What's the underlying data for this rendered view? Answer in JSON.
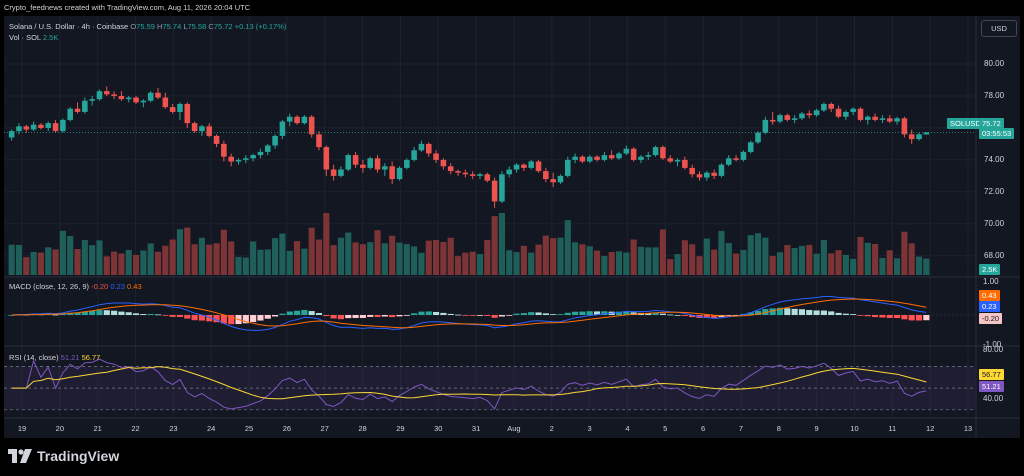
{
  "watermark": "Crypto_feednews created with TradingView.com, Aug 11, 2026 20:04 UTC",
  "legend": {
    "symbol": "Solana / U.S. Dollar · 4h · Coinbase",
    "o_label": "O",
    "o_value": "75.59",
    "h_label": "H",
    "h_value": "75.74",
    "l_label": "L",
    "l_value": "75.58",
    "c_label": "C",
    "c_value": "75.72",
    "change": "+0.13 (+0.17%)",
    "vol_label": "Vol · SOL",
    "vol_value": "2.5K"
  },
  "currency_button": "USD",
  "price_axis": [
    "80.00",
    "78.00",
    "76.00",
    "74.00",
    "72.00",
    "70.00",
    "68.00"
  ],
  "price_tag": {
    "symbol": "SOLUSD",
    "price": "75.72",
    "countdown": "03:55:53"
  },
  "volume_tag": "2.5K",
  "macd": {
    "label": "MACD (close, 12, 26, 9)",
    "hist_value": "-0.20",
    "macd_value": "0.23",
    "signal_value": "0.43",
    "axis": [
      "1.00",
      "-1.00"
    ],
    "tag_signal": "0.43",
    "tag_macd": "0.23",
    "tag_hist": "-0.20"
  },
  "rsi": {
    "label": "RSI (14, close)",
    "rsi_value": "51.21",
    "ma_value": "56.77",
    "axis": [
      "80.00",
      "40.00"
    ],
    "tag_ma": "56.77",
    "tag_rsi": "51.21"
  },
  "time_axis": [
    "19",
    "20",
    "21",
    "22",
    "23",
    "24",
    "25",
    "26",
    "27",
    "28",
    "29",
    "30",
    "31",
    "Aug",
    "2",
    "3",
    "4",
    "5",
    "6",
    "7",
    "8",
    "9",
    "10",
    "11",
    "12",
    "13"
  ],
  "footer_brand": "TradingView",
  "colors": {
    "up": "#26a69a",
    "down": "#ef5350",
    "macd_line": "#2962ff",
    "signal_line": "#ff6d00",
    "rsi_line": "#7e57c2",
    "rsi_ma": "#fdd835",
    "bg": "#131722"
  },
  "chart_data": {
    "type": "candlestick",
    "interval": "4h",
    "candles_ohlc": [
      [
        75.4,
        75.9,
        75.2,
        75.8
      ],
      [
        75.8,
        76.3,
        75.6,
        76.1
      ],
      [
        76.1,
        76.2,
        75.7,
        75.9
      ],
      [
        75.9,
        76.4,
        75.8,
        76.2
      ],
      [
        76.2,
        76.3,
        75.9,
        76.0
      ],
      [
        76.0,
        76.4,
        75.8,
        76.3
      ],
      [
        76.3,
        76.5,
        75.7,
        75.8
      ],
      [
        75.8,
        76.6,
        75.7,
        76.5
      ],
      [
        76.5,
        77.3,
        76.4,
        77.2
      ],
      [
        77.2,
        77.6,
        76.9,
        77.0
      ],
      [
        77.0,
        77.9,
        76.9,
        77.7
      ],
      [
        77.7,
        78.0,
        77.4,
        77.8
      ],
      [
        77.8,
        78.4,
        77.7,
        78.3
      ],
      [
        78.3,
        78.6,
        78.0,
        78.1
      ],
      [
        78.1,
        78.3,
        77.8,
        78.0
      ],
      [
        78.0,
        78.3,
        77.7,
        77.8
      ],
      [
        77.8,
        78.0,
        77.6,
        77.9
      ],
      [
        77.9,
        78.0,
        77.5,
        77.6
      ],
      [
        77.6,
        77.8,
        77.3,
        77.7
      ],
      [
        77.7,
        78.3,
        77.6,
        78.2
      ],
      [
        78.2,
        78.5,
        77.8,
        77.9
      ],
      [
        77.9,
        78.2,
        77.2,
        77.3
      ],
      [
        77.3,
        77.5,
        76.9,
        77.0
      ],
      [
        77.0,
        77.6,
        76.5,
        77.5
      ],
      [
        77.5,
        77.6,
        76.0,
        76.3
      ],
      [
        76.3,
        76.4,
        75.7,
        75.8
      ],
      [
        75.8,
        76.2,
        75.5,
        76.1
      ],
      [
        76.1,
        76.3,
        75.4,
        75.5
      ],
      [
        75.5,
        75.6,
        74.8,
        75.0
      ],
      [
        75.0,
        75.2,
        73.9,
        74.2
      ],
      [
        74.2,
        74.4,
        73.6,
        73.9
      ],
      [
        73.9,
        74.1,
        73.7,
        74.0
      ],
      [
        74.0,
        74.3,
        73.8,
        74.1
      ],
      [
        74.1,
        74.4,
        73.9,
        74.3
      ],
      [
        74.3,
        74.7,
        74.1,
        74.5
      ],
      [
        74.5,
        75.0,
        74.3,
        74.9
      ],
      [
        74.9,
        75.6,
        74.7,
        75.5
      ],
      [
        75.5,
        76.5,
        75.3,
        76.4
      ],
      [
        76.4,
        76.9,
        76.1,
        76.7
      ],
      [
        76.7,
        76.8,
        76.2,
        76.3
      ],
      [
        76.3,
        76.8,
        76.2,
        76.7
      ],
      [
        76.7,
        76.8,
        75.4,
        75.6
      ],
      [
        75.6,
        75.8,
        74.6,
        74.8
      ],
      [
        74.8,
        74.9,
        73.0,
        73.4
      ],
      [
        73.4,
        73.7,
        72.7,
        73.0
      ],
      [
        73.0,
        73.6,
        72.9,
        73.4
      ],
      [
        73.4,
        74.4,
        73.3,
        74.3
      ],
      [
        74.3,
        74.5,
        73.5,
        73.7
      ],
      [
        73.7,
        74.0,
        73.2,
        73.5
      ],
      [
        73.5,
        74.2,
        73.4,
        74.1
      ],
      [
        74.1,
        74.3,
        73.2,
        73.4
      ],
      [
        73.4,
        73.8,
        73.0,
        73.6
      ],
      [
        73.6,
        73.9,
        72.5,
        72.8
      ],
      [
        72.8,
        73.6,
        72.7,
        73.5
      ],
      [
        73.5,
        74.1,
        73.4,
        74.0
      ],
      [
        74.0,
        74.8,
        73.9,
        74.6
      ],
      [
        74.6,
        75.2,
        74.5,
        75.0
      ],
      [
        75.0,
        75.1,
        74.2,
        74.4
      ],
      [
        74.4,
        74.6,
        73.8,
        74.0
      ],
      [
        74.0,
        74.1,
        73.4,
        73.6
      ],
      [
        73.6,
        73.8,
        73.1,
        73.3
      ],
      [
        73.3,
        73.4,
        73.0,
        73.2
      ],
      [
        73.2,
        73.4,
        72.9,
        73.1
      ],
      [
        73.1,
        73.3,
        72.8,
        73.0
      ],
      [
        73.0,
        73.2,
        72.8,
        73.1
      ],
      [
        73.1,
        73.2,
        72.6,
        72.7
      ],
      [
        72.7,
        72.9,
        71.0,
        71.4
      ],
      [
        71.4,
        73.3,
        71.3,
        73.1
      ],
      [
        73.1,
        73.6,
        72.9,
        73.4
      ],
      [
        73.4,
        73.8,
        73.2,
        73.7
      ],
      [
        73.7,
        73.8,
        73.3,
        73.5
      ],
      [
        73.5,
        74.0,
        73.4,
        73.9
      ],
      [
        73.9,
        74.0,
        73.2,
        73.3
      ],
      [
        73.3,
        73.5,
        72.6,
        72.8
      ],
      [
        72.8,
        73.2,
        72.3,
        72.6
      ],
      [
        72.6,
        73.1,
        72.5,
        73.0
      ],
      [
        73.0,
        74.2,
        72.9,
        74.0
      ],
      [
        74.0,
        74.4,
        73.8,
        74.2
      ],
      [
        74.2,
        74.3,
        73.8,
        73.9
      ],
      [
        73.9,
        74.3,
        73.8,
        74.2
      ],
      [
        74.2,
        74.3,
        73.9,
        74.0
      ],
      [
        74.0,
        74.5,
        73.9,
        74.3
      ],
      [
        74.3,
        74.6,
        74.0,
        74.1
      ],
      [
        74.1,
        74.5,
        74.0,
        74.4
      ],
      [
        74.4,
        74.9,
        74.3,
        74.7
      ],
      [
        74.7,
        74.8,
        73.9,
        74.0
      ],
      [
        74.0,
        74.3,
        73.8,
        74.2
      ],
      [
        74.2,
        74.5,
        74.0,
        74.3
      ],
      [
        74.3,
        74.9,
        74.2,
        74.8
      ],
      [
        74.8,
        74.9,
        74.0,
        74.1
      ],
      [
        74.1,
        74.3,
        73.8,
        73.9
      ],
      [
        73.9,
        74.1,
        73.6,
        74.0
      ],
      [
        74.0,
        74.2,
        73.4,
        73.5
      ],
      [
        73.5,
        73.7,
        72.9,
        73.1
      ],
      [
        73.1,
        73.3,
        72.7,
        72.9
      ],
      [
        72.9,
        73.3,
        72.7,
        73.2
      ],
      [
        73.2,
        73.4,
        72.8,
        73.0
      ],
      [
        73.0,
        73.8,
        72.9,
        73.7
      ],
      [
        73.7,
        74.3,
        73.6,
        74.1
      ],
      [
        74.1,
        74.3,
        73.9,
        74.0
      ],
      [
        74.0,
        74.6,
        73.9,
        74.5
      ],
      [
        74.5,
        75.2,
        74.4,
        75.1
      ],
      [
        75.1,
        75.8,
        75.0,
        75.7
      ],
      [
        75.7,
        76.7,
        75.6,
        76.5
      ],
      [
        76.5,
        77.0,
        76.2,
        76.4
      ],
      [
        76.4,
        76.9,
        76.3,
        76.8
      ],
      [
        76.8,
        76.9,
        76.4,
        76.5
      ],
      [
        76.5,
        76.8,
        76.3,
        76.6
      ],
      [
        76.6,
        77.0,
        76.5,
        76.9
      ],
      [
        76.9,
        77.1,
        76.6,
        76.8
      ],
      [
        76.8,
        77.2,
        76.7,
        77.1
      ],
      [
        77.1,
        77.6,
        77.0,
        77.5
      ],
      [
        77.5,
        77.6,
        77.0,
        77.2
      ],
      [
        77.2,
        77.4,
        76.6,
        76.7
      ],
      [
        76.7,
        77.1,
        76.5,
        77.0
      ],
      [
        77.0,
        77.3,
        76.8,
        77.2
      ],
      [
        77.2,
        77.3,
        76.4,
        76.5
      ],
      [
        76.5,
        76.8,
        76.2,
        76.7
      ],
      [
        76.7,
        76.9,
        76.4,
        76.5
      ],
      [
        76.5,
        76.8,
        76.3,
        76.6
      ],
      [
        76.6,
        76.8,
        76.3,
        76.4
      ],
      [
        76.4,
        76.7,
        76.2,
        76.6
      ],
      [
        76.6,
        76.7,
        75.4,
        75.6
      ],
      [
        75.6,
        75.9,
        75.0,
        75.3
      ],
      [
        75.3,
        75.7,
        75.2,
        75.6
      ],
      [
        75.59,
        75.74,
        75.58,
        75.72
      ]
    ],
    "volume_last": "2.5K",
    "macd_last": {
      "macd": 0.23,
      "signal": 0.43,
      "histogram": -0.2
    },
    "rsi_last": {
      "rsi": 51.21,
      "rsi_ma": 56.77
    },
    "y_range_price": [
      66.8,
      81.5
    ]
  }
}
